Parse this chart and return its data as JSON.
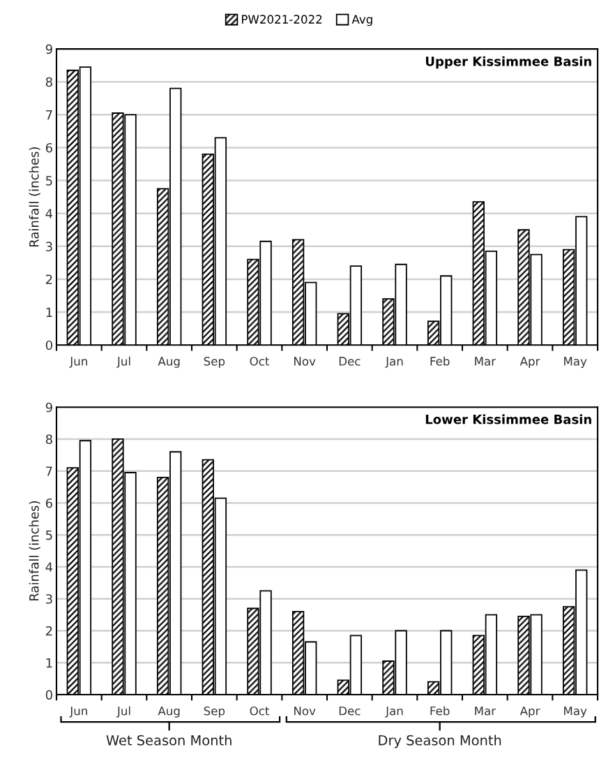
{
  "chart_data": [
    {
      "type": "bar",
      "title": "Upper Kissimmee Basin",
      "ylabel": "Rainfall (inches)",
      "categories": [
        "Jun",
        "Jul",
        "Aug",
        "Sep",
        "Oct",
        "Nov",
        "Dec",
        "Jan",
        "Feb",
        "Mar",
        "Apr",
        "May"
      ],
      "series": [
        {
          "name": "PW2021-2022",
          "color": "#000000",
          "values": [
            8.35,
            7.05,
            4.75,
            5.8,
            2.6,
            3.2,
            0.95,
            1.4,
            0.72,
            4.35,
            3.5,
            2.9
          ]
        },
        {
          "name": "Avg",
          "color": "#ffffff",
          "values": [
            8.45,
            7.0,
            7.8,
            6.3,
            3.15,
            1.9,
            2.4,
            2.45,
            2.1,
            2.85,
            2.75,
            3.9
          ]
        }
      ],
      "ylim": [
        0,
        9
      ],
      "yticks": [
        0,
        1,
        2,
        3,
        4,
        5,
        6,
        7,
        8,
        9
      ],
      "grid": "y",
      "legend": "top"
    },
    {
      "type": "bar",
      "title": "Lower Kissimmee Basin",
      "ylabel": "Rainfall (inches)",
      "categories": [
        "Jun",
        "Jul",
        "Aug",
        "Sep",
        "Oct",
        "Nov",
        "Dec",
        "Jan",
        "Feb",
        "Mar",
        "Apr",
        "May"
      ],
      "series": [
        {
          "color": "#000000",
          "values": [
            7.1,
            8.0,
            6.8,
            7.35,
            2.7,
            2.6,
            0.45,
            1.05,
            0.4,
            1.85,
            2.45,
            2.75
          ]
        },
        {
          "color": "#ffffff",
          "values": [
            7.95,
            6.95,
            7.6,
            6.15,
            3.25,
            1.65,
            1.85,
            2.0,
            2.0,
            2.5,
            2.5,
            3.9
          ]
        }
      ],
      "ylim": [
        0,
        9
      ],
      "yticks": [
        0,
        1,
        2,
        3,
        4,
        5,
        6,
        7,
        8,
        9
      ],
      "grid": "y",
      "annotations": [
        "Wet Season Month",
        "Dry Season Month"
      ]
    }
  ]
}
